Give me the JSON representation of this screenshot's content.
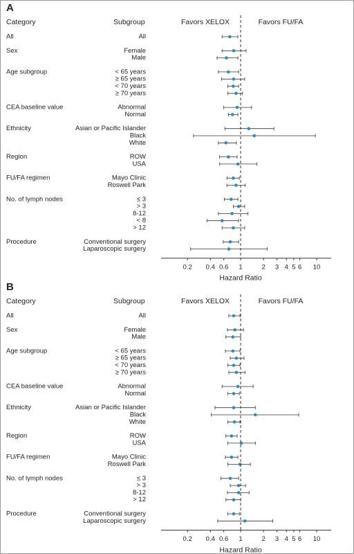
{
  "chart_data": [
    {
      "type": "forest",
      "panel": "A",
      "category_header": "Category",
      "subgroup_header": "Subgroup",
      "favors_left": "Favors XELOX",
      "favors_right": "Favors FU/FA",
      "xlabel": "Hazard Ratio",
      "log_x": true,
      "xlim": [
        0.09,
        15.5
      ],
      "xticks": [
        0.2,
        0.4,
        0.6,
        1,
        2,
        3,
        4,
        5,
        6,
        10
      ],
      "reference": 1,
      "color": "#2e8bc0",
      "groups": [
        {
          "name": "All",
          "subgroups": [
            "All"
          ],
          "values": [
            0.72
          ],
          "lower": [
            0.57
          ],
          "upper": [
            0.92
          ]
        },
        {
          "name": "Sex",
          "subgroups": [
            "Female",
            "Male"
          ],
          "values": [
            0.81,
            0.65
          ],
          "lower": [
            0.57,
            0.49
          ],
          "upper": [
            1.18,
            0.92
          ]
        },
        {
          "name": "Age subgroup",
          "subgroups": [
            "< 65 years",
            "≥ 65 years",
            "< 70 years",
            "≥ 70 years"
          ],
          "values": [
            0.69,
            0.81,
            0.8,
            0.87
          ],
          "lower": [
            0.51,
            0.56,
            0.68,
            0.68
          ],
          "upper": [
            0.94,
            1.13,
            0.94,
            1.06
          ]
        },
        {
          "name": "CEA baseline value",
          "subgroups": [
            "Abnormal",
            "Normal"
          ],
          "values": [
            0.9,
            0.78
          ],
          "lower": [
            0.6,
            0.69
          ],
          "upper": [
            1.39,
            0.92
          ]
        },
        {
          "name": "Ethnicity",
          "subgroups": [
            "Asian or Pacific Islander",
            "Black",
            "White"
          ],
          "values": [
            1.28,
            1.51,
            0.64
          ],
          "lower": [
            0.62,
            0.24,
            0.51
          ],
          "upper": [
            2.74,
            9.6,
            0.88
          ]
        },
        {
          "name": "Region",
          "subgroups": [
            "ROW",
            "USA"
          ],
          "values": [
            0.69,
            0.92
          ],
          "lower": [
            0.53,
            0.53
          ],
          "upper": [
            0.9,
            1.64
          ]
        },
        {
          "name": "FU/FA regimen",
          "subgroups": [
            "Mayo Clinic",
            "Roswell Park"
          ],
          "values": [
            0.8,
            0.87
          ],
          "lower": [
            0.66,
            0.66
          ],
          "upper": [
            0.96,
            1.15
          ]
        },
        {
          "name": "No. of lymph nodes",
          "subgroups": [
            "≤ 3",
            "> 3",
            "8-12",
            "< 8",
            "> 12"
          ],
          "values": [
            0.75,
            0.94,
            0.77,
            0.57,
            0.8
          ],
          "lower": [
            0.61,
            0.8,
            0.51,
            0.36,
            0.57
          ],
          "upper": [
            0.92,
            1.13,
            1.25,
            0.94,
            1.13
          ]
        },
        {
          "name": "Procedure",
          "subgroups": [
            "Conventional surgery",
            "Laparoscopic surgery"
          ],
          "values": [
            0.73,
            0.7
          ],
          "lower": [
            0.59,
            0.22
          ],
          "upper": [
            0.94,
            2.23
          ]
        }
      ]
    },
    {
      "type": "forest",
      "panel": "B",
      "category_header": "Category",
      "subgroup_header": "Subgroup",
      "favors_left": "Favors XELOX",
      "favors_right": "Favors FU/FA",
      "xlabel": "Hazard Ratio",
      "log_x": true,
      "xlim": [
        0.09,
        15.5
      ],
      "xticks": [
        0.2,
        0.4,
        0.6,
        1,
        2,
        3,
        4,
        5,
        6,
        10
      ],
      "reference": 1,
      "color": "#2e8bc0",
      "groups": [
        {
          "name": "All",
          "subgroups": [
            "All"
          ],
          "values": [
            0.81
          ],
          "lower": [
            0.7
          ],
          "upper": [
            0.98
          ]
        },
        {
          "name": "Sex",
          "subgroups": [
            "Female",
            "Male"
          ],
          "values": [
            0.84,
            0.79
          ],
          "lower": [
            0.67,
            0.64
          ],
          "upper": [
            1.09,
            1.0
          ]
        },
        {
          "name": "Age subgroup",
          "subgroups": [
            "< 65 years",
            "≥ 65 years",
            "< 70 years",
            "≥ 70 years"
          ],
          "values": [
            0.79,
            0.88,
            0.81,
            0.88
          ],
          "lower": [
            0.63,
            0.73,
            0.68,
            0.7
          ],
          "upper": [
            0.98,
            1.11,
            0.98,
            1.14
          ]
        },
        {
          "name": "CEA baseline value",
          "subgroups": [
            "Abnormal",
            "Normal"
          ],
          "values": [
            0.92,
            0.81
          ],
          "lower": [
            0.57,
            0.68
          ],
          "upper": [
            1.46,
            0.96
          ]
        },
        {
          "name": "Ethnicity",
          "subgroups": [
            "Asian or Pacific Islander",
            "Black",
            "White"
          ],
          "values": [
            0.81,
            1.56,
            0.83
          ],
          "lower": [
            0.46,
            0.41,
            0.68
          ],
          "upper": [
            1.56,
            5.8,
            0.98
          ]
        },
        {
          "name": "Region",
          "subgroups": [
            "ROW",
            "USA"
          ],
          "values": [
            0.76,
            1.02
          ],
          "lower": [
            0.64,
            0.68
          ],
          "upper": [
            0.9,
            1.56
          ]
        },
        {
          "name": "FU/FA regimen",
          "subgroups": [
            "Mayo Clinic",
            "Roswell Park"
          ],
          "values": [
            0.76,
            0.98
          ],
          "lower": [
            0.63,
            0.68
          ],
          "upper": [
            0.92,
            1.34
          ]
        },
        {
          "name": "No. of lymph nodes",
          "subgroups": [
            "≤ 3",
            "> 3",
            "8-12",
            "> 12"
          ],
          "values": [
            0.73,
            0.94,
            0.94,
            0.81
          ],
          "lower": [
            0.55,
            0.73,
            0.67,
            0.64
          ],
          "upper": [
            0.94,
            1.16,
            1.29,
            1.0
          ]
        },
        {
          "name": "Procedure",
          "subgroups": [
            "Conventional surgery",
            "Laparoscopic surgery"
          ],
          "values": [
            0.81,
            1.14
          ],
          "lower": [
            0.68,
            0.5
          ],
          "upper": [
            0.96,
            2.64
          ]
        }
      ]
    }
  ]
}
